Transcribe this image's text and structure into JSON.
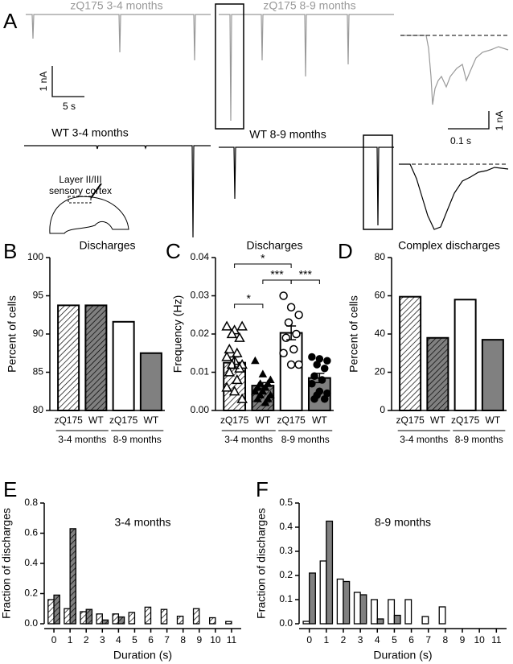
{
  "panel_labels": [
    "A",
    "B",
    "C",
    "D",
    "E",
    "F"
  ],
  "panel_a": {
    "trace_labels": [
      "zQ175 3-4 months",
      "zQ175 8-9 months",
      "WT 3-4 months",
      "WT 8-9 months"
    ],
    "schematic_labels": [
      "Layer II/III",
      "sensory cortex"
    ],
    "scale_left": [
      "1 nA",
      "5 s"
    ],
    "scale_right": [
      "0.1 s",
      "1 nA"
    ]
  },
  "chart_data": [
    {
      "type": "bar",
      "title": "Discharges",
      "ylabel": "Percent of cells",
      "categories": [
        "zQ175",
        "WT",
        "zQ175",
        "WT"
      ],
      "groups": [
        "3-4 months",
        "8-9 months"
      ],
      "values": [
        93.75,
        93.75,
        91.6,
        87.5
      ],
      "colors": [
        "#ffffff",
        "#808080",
        "#ffffff",
        "#808080"
      ],
      "hatched": [
        true,
        true,
        false,
        false
      ],
      "ylim": [
        80,
        100
      ],
      "yticks": [
        80,
        85,
        90,
        95,
        100
      ]
    },
    {
      "type": "bar",
      "title": "Discharges",
      "ylabel": "Frequency (Hz)",
      "categories": [
        "zQ175",
        "WT",
        "zQ175",
        "WT"
      ],
      "groups": [
        "3-4 months",
        "8-9 months"
      ],
      "values": [
        0.0125,
        0.0065,
        0.0203,
        0.0085
      ],
      "errors": [
        0.0015,
        0.0008,
        0.0018,
        0.0012
      ],
      "colors": [
        "#ffffff",
        "#808080",
        "#ffffff",
        "#808080"
      ],
      "hatched": [
        true,
        true,
        false,
        false
      ],
      "markers": [
        "triangle-open",
        "triangle-filled",
        "circle-open",
        "circle-filled"
      ],
      "points": [
        [
          0.022,
          0.021,
          0.022,
          0.02,
          0.019,
          0.016,
          0.015,
          0.014,
          0.013,
          0.012,
          0.012,
          0.011,
          0.01,
          0.008,
          0.006,
          0.005,
          0.003
        ],
        [
          0.013,
          0.0095,
          0.008,
          0.007,
          0.007,
          0.006,
          0.006,
          0.005,
          0.005,
          0.004,
          0.004,
          0.003,
          0.003,
          0.002
        ],
        [
          0.03,
          0.027,
          0.025,
          0.023,
          0.02,
          0.019,
          0.016,
          0.015,
          0.012,
          0.012
        ],
        [
          0.014,
          0.0135,
          0.013,
          0.012,
          0.011,
          0.009,
          0.008,
          0.007,
          0.005,
          0.0045,
          0.004,
          0.003,
          0.003
        ]
      ],
      "comparisons": [
        {
          "categories": [
            0,
            1
          ],
          "label": "*"
        },
        {
          "categories": [
            1,
            2
          ],
          "label": "***"
        },
        {
          "categories": [
            0,
            2
          ],
          "label": "*"
        },
        {
          "categories": [
            2,
            3
          ],
          "label": "***"
        }
      ],
      "ylim": [
        0,
        0.04
      ],
      "yticks": [
        {
          "value": 0,
          "label": "0.00"
        },
        {
          "value": 0.01,
          "label": "0.01"
        },
        {
          "value": 0.02,
          "label": "0.02"
        },
        {
          "value": 0.03,
          "label": "0.03"
        },
        {
          "value": 0.04,
          "label": "0.04"
        }
      ]
    },
    {
      "type": "bar",
      "title": "Complex discharges",
      "ylabel": "Percent of cells",
      "categories": [
        "zQ175",
        "WT",
        "zQ175",
        "WT"
      ],
      "groups": [
        "3-4 months",
        "8-9 months"
      ],
      "values": [
        59.5,
        38,
        58,
        37
      ],
      "colors": [
        "#ffffff",
        "#808080",
        "#ffffff",
        "#808080"
      ],
      "hatched": [
        true,
        true,
        false,
        false
      ],
      "ylim": [
        0,
        80
      ],
      "yticks": [
        0,
        20,
        40,
        60,
        80
      ]
    },
    {
      "type": "grouped-bar",
      "annotation": "3-4 months",
      "xlabel": "Duration (s)",
      "ylabel": "Fraction of discharges",
      "x": [
        0,
        1,
        2,
        3,
        4,
        5,
        6,
        7,
        8,
        9,
        10,
        11
      ],
      "series": [
        {
          "color": "#ffffff",
          "hatched": true,
          "values": [
            0.16,
            0.1,
            0.08,
            0.065,
            0.065,
            0.075,
            0.11,
            0.095,
            0.05,
            0.1,
            0.04,
            0.015
          ]
        },
        {
          "color": "#808080",
          "hatched": true,
          "values": [
            0.19,
            0.63,
            0.095,
            0.025,
            0.045,
            0,
            0,
            0,
            0,
            0,
            0,
            0
          ]
        }
      ],
      "xlim": [
        -0.6,
        11.6
      ],
      "xticks": [
        0,
        1,
        2,
        3,
        4,
        5,
        6,
        7,
        8,
        9,
        10,
        11
      ],
      "ylim": [
        0,
        0.8
      ],
      "yticks": [
        {
          "value": 0,
          "label": "0.0"
        },
        {
          "value": 0.2,
          "label": "0.2"
        },
        {
          "value": 0.4,
          "label": "0.4"
        },
        {
          "value": 0.6,
          "label": "0.6"
        },
        {
          "value": 0.8,
          "label": "0.8"
        }
      ]
    },
    {
      "type": "grouped-bar",
      "annotation": "8-9 months",
      "xlabel": "Duration (s)",
      "ylabel": "Fraction of discharges",
      "x": [
        0,
        1,
        2,
        3,
        4,
        5,
        6,
        7,
        8,
        9,
        10,
        11
      ],
      "series": [
        {
          "color": "#ffffff",
          "hatched": false,
          "values": [
            0.01,
            0.26,
            0.185,
            0.13,
            0.1,
            0.1,
            0.1,
            0.03,
            0.07,
            0,
            0,
            0
          ]
        },
        {
          "color": "#808080",
          "hatched": false,
          "values": [
            0.21,
            0.425,
            0.175,
            0.12,
            0.02,
            0.035,
            0,
            0,
            0,
            0,
            0,
            0
          ]
        }
      ],
      "xlim": [
        -0.6,
        11.6
      ],
      "xticks": [
        0,
        1,
        2,
        3,
        4,
        5,
        6,
        7,
        8,
        9,
        10,
        11
      ],
      "ylim": [
        0,
        0.5
      ],
      "yticks": [
        {
          "value": 0,
          "label": "0.0"
        },
        {
          "value": 0.1,
          "label": "0.1"
        },
        {
          "value": 0.2,
          "label": "0.2"
        },
        {
          "value": 0.3,
          "label": "0.3"
        },
        {
          "value": 0.4,
          "label": "0.4"
        },
        {
          "value": 0.5,
          "label": "0.5"
        }
      ]
    }
  ]
}
